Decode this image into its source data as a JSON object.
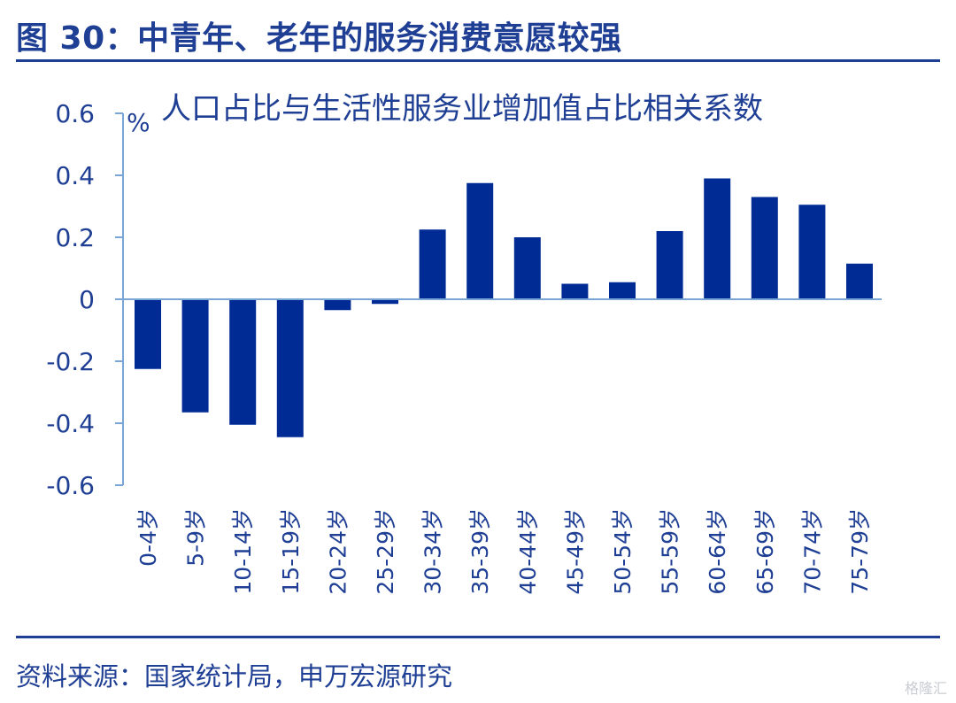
{
  "figure": {
    "title": "图 30：中青年、老年的服务消费意愿较强",
    "source": "资料来源：国家统计局，申万宏源研究",
    "watermark": "格隆汇"
  },
  "colors": {
    "bar": "#002b95",
    "axis": "#7aa6d6",
    "text": "#1f3f95"
  },
  "chart_data": {
    "type": "bar",
    "title": "人口占比与生活性服务业增加值占比相关系数",
    "ylabel": "%",
    "xlabel": "",
    "ylim": [
      -0.6,
      0.6
    ],
    "yticks": [
      0.6,
      0.4,
      0.2,
      0,
      -0.2,
      -0.4,
      -0.6
    ],
    "ytick_labels": [
      "0.6",
      "0.4",
      "0.2",
      "0",
      "-0.2",
      "-0.4",
      "-0.6"
    ],
    "grid": false,
    "categories": [
      "0-4岁",
      "5-9岁",
      "10-14岁",
      "15-19岁",
      "20-24岁",
      "25-29岁",
      "30-34岁",
      "35-39岁",
      "40-44岁",
      "45-49岁",
      "50-54岁",
      "55-59岁",
      "60-64岁",
      "65-69岁",
      "70-74岁",
      "75-79岁"
    ],
    "values": [
      -0.225,
      -0.365,
      -0.405,
      -0.445,
      -0.035,
      -0.015,
      0.225,
      0.375,
      0.2,
      0.05,
      0.055,
      0.22,
      0.39,
      0.33,
      0.305,
      0.115
    ]
  }
}
